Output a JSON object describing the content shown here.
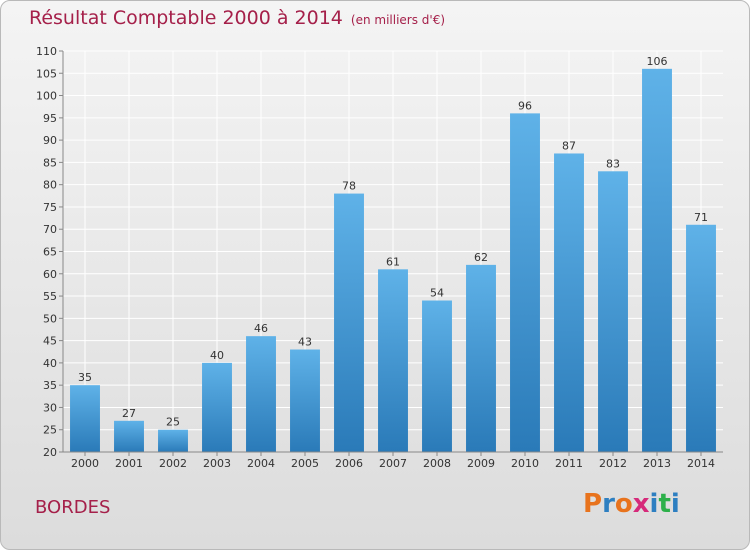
{
  "title": "Résultat Comptable 2000 à 2014",
  "unit": "(en milliers d'€)",
  "city": "BORDES",
  "logo": {
    "letters": [
      "P",
      "r",
      "o",
      "x",
      "i",
      "t",
      "i"
    ],
    "colors": [
      "#e8731d",
      "#2d7fc1",
      "#e8731d",
      "#d62a7a",
      "#2d7fc1",
      "#2db04a",
      "#2d7fc1"
    ]
  },
  "colors": {
    "bar_top": "#5fb2e8",
    "bar_bottom": "#2a7ab8",
    "title": "#a5204a",
    "grid": "#ffffff"
  },
  "chart_data": {
    "type": "bar",
    "categories": [
      "2000",
      "2001",
      "2002",
      "2003",
      "2004",
      "2005",
      "2006",
      "2007",
      "2008",
      "2009",
      "2010",
      "2011",
      "2012",
      "2013",
      "2014"
    ],
    "values": [
      35,
      27,
      25,
      40,
      46,
      43,
      78,
      61,
      54,
      62,
      96,
      87,
      83,
      106,
      71
    ],
    "ylim": [
      20,
      110
    ],
    "yticks": [
      20,
      25,
      30,
      35,
      40,
      45,
      50,
      55,
      60,
      65,
      70,
      75,
      80,
      85,
      90,
      95,
      100,
      105,
      110
    ],
    "grid": true,
    "data_labels": true,
    "xlabel": "",
    "ylabel": ""
  }
}
